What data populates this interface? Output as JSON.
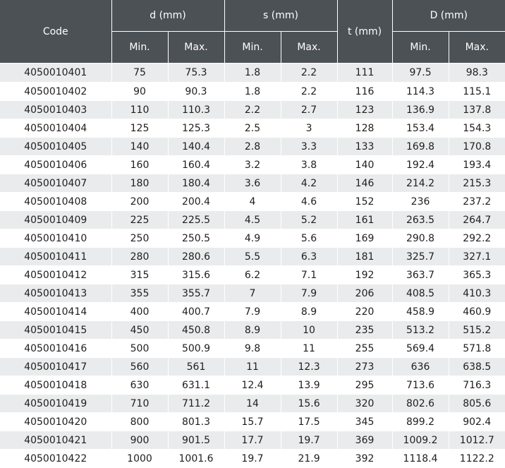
{
  "table": {
    "headers": {
      "code": "Code",
      "d": "d (mm)",
      "s": "s (mm)",
      "t": "t (mm)",
      "D": "D (mm)",
      "min": "Min.",
      "max": "Max."
    },
    "rows": [
      [
        "4050010401",
        "75",
        "75.3",
        "1.8",
        "2.2",
        "111",
        "97.5",
        "98.3"
      ],
      [
        "4050010402",
        "90",
        "90.3",
        "1.8",
        "2.2",
        "116",
        "114.3",
        "115.1"
      ],
      [
        "4050010403",
        "110",
        "110.3",
        "2.2",
        "2.7",
        "123",
        "136.9",
        "137.8"
      ],
      [
        "4050010404",
        "125",
        "125.3",
        "2.5",
        "3",
        "128",
        "153.4",
        "154.3"
      ],
      [
        "4050010405",
        "140",
        "140.4",
        "2.8",
        "3.3",
        "133",
        "169.8",
        "170.8"
      ],
      [
        "4050010406",
        "160",
        "160.4",
        "3.2",
        "3.8",
        "140",
        "192.4",
        "193.4"
      ],
      [
        "4050010407",
        "180",
        "180.4",
        "3.6",
        "4.2",
        "146",
        "214.2",
        "215.3"
      ],
      [
        "4050010408",
        "200",
        "200.4",
        "4",
        "4.6",
        "152",
        "236",
        "237.2"
      ],
      [
        "4050010409",
        "225",
        "225.5",
        "4.5",
        "5.2",
        "161",
        "263.5",
        "264.7"
      ],
      [
        "4050010410",
        "250",
        "250.5",
        "4.9",
        "5.6",
        "169",
        "290.8",
        "292.2"
      ],
      [
        "4050010411",
        "280",
        "280.6",
        "5.5",
        "6.3",
        "181",
        "325.7",
        "327.1"
      ],
      [
        "4050010412",
        "315",
        "315.6",
        "6.2",
        "7.1",
        "192",
        "363.7",
        "365.3"
      ],
      [
        "4050010413",
        "355",
        "355.7",
        "7",
        "7.9",
        "206",
        "408.5",
        "410.3"
      ],
      [
        "4050010414",
        "400",
        "400.7",
        "7.9",
        "8.9",
        "220",
        "458.9",
        "460.9"
      ],
      [
        "4050010415",
        "450",
        "450.8",
        "8.9",
        "10",
        "235",
        "513.2",
        "515.2"
      ],
      [
        "4050010416",
        "500",
        "500.9",
        "9.8",
        "11",
        "255",
        "569.4",
        "571.8"
      ],
      [
        "4050010417",
        "560",
        "561",
        "11",
        "12.3",
        "273",
        "636",
        "638.5"
      ],
      [
        "4050010418",
        "630",
        "631.1",
        "12.4",
        "13.9",
        "295",
        "713.6",
        "716.3"
      ],
      [
        "4050010419",
        "710",
        "711.2",
        "14",
        "15.6",
        "320",
        "802.6",
        "805.6"
      ],
      [
        "4050010420",
        "800",
        "801.3",
        "15.7",
        "17.5",
        "345",
        "899.2",
        "902.4"
      ],
      [
        "4050010421",
        "900",
        "901.5",
        "17.7",
        "19.7",
        "369",
        "1009.2",
        "1012.7"
      ],
      [
        "4050010422",
        "1000",
        "1001.6",
        "19.7",
        "21.9",
        "392",
        "1118.4",
        "1122.2"
      ]
    ]
  }
}
